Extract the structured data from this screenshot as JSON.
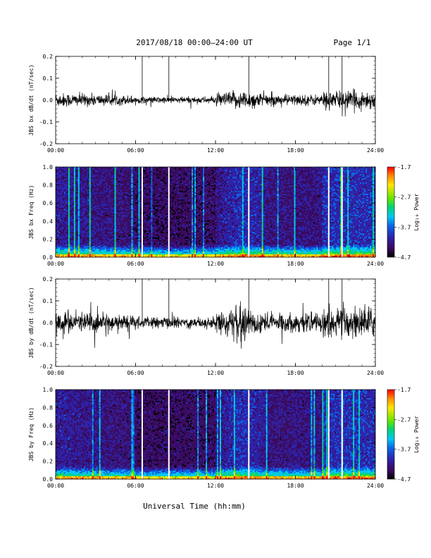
{
  "header": {
    "title": "2017/08/18  00:00–24:00 UT",
    "page": "Page 1/1"
  },
  "footer": {
    "xlabel": "Universal Time (hh:mm)"
  },
  "colors": {
    "spectrogram_palette": [
      "#000000",
      "#3a0a5e",
      "#2e22a8",
      "#0a66e8",
      "#00c8f0",
      "#00d27a",
      "#64e600",
      "#ffe600",
      "#ff8c00",
      "#ff0000"
    ],
    "trace": "#000000",
    "gap": "#ffffff"
  },
  "chart_data": [
    {
      "type": "line",
      "id": "bx-ts",
      "ylabel": "JBS bx dB/dt (nT/sec)",
      "xticks": [
        "00:00",
        "06:00",
        "12:00",
        "18:00",
        "24:00"
      ],
      "xlim": [
        0,
        24
      ],
      "ylim": [
        -0.2,
        0.2
      ],
      "yticks": [
        "0.2",
        "0.1",
        "0.0",
        "-0.1",
        "-0.2"
      ],
      "description_values": {
        "baseline": 0.0,
        "typical_amplitude_nT_per_s": 0.03,
        "spikes_hours": [
          6.5,
          8.5,
          14.5,
          20.5,
          21.5
        ]
      }
    },
    {
      "type": "heatmap",
      "id": "bx-spec",
      "ylabel": "JBS bx Freq (Hz)",
      "xticks": [
        "00:00",
        "06:00",
        "12:00",
        "18:00",
        "24:00"
      ],
      "xlim": [
        0,
        24
      ],
      "ylim": [
        0.0,
        1.0
      ],
      "yticks": [
        "1.0",
        "0.8",
        "0.6",
        "0.4",
        "0.2",
        "0.0"
      ],
      "colorbar": {
        "label": "Log₁₀ Power",
        "ticks": [
          "-1.7",
          "-2.7",
          "-3.7",
          "-4.7"
        ],
        "range": [
          -4.7,
          -1.7
        ]
      },
      "data_gaps_hours": [
        6.5,
        8.5,
        14.5,
        20.5,
        21.5
      ]
    },
    {
      "type": "line",
      "id": "by-ts",
      "ylabel": "JBS by dB/dt (nT/sec)",
      "xticks": [
        "00:00",
        "06:00",
        "12:00",
        "18:00",
        "24:00"
      ],
      "xlim": [
        0,
        24
      ],
      "ylim": [
        -0.2,
        0.2
      ],
      "yticks": [
        "0.2",
        "0.1",
        "0.0",
        "-0.1",
        "-0.2"
      ],
      "description_values": {
        "baseline": 0.0,
        "typical_amplitude_nT_per_s": 0.05,
        "spikes_hours": [
          6.5,
          8.5,
          14.5,
          20.5,
          21.5
        ]
      }
    },
    {
      "type": "heatmap",
      "id": "by-spec",
      "ylabel": "JBS by Freq (Hz)",
      "xticks": [
        "00:00",
        "06:00",
        "12:00",
        "18:00",
        "24:00"
      ],
      "xlim": [
        0,
        24
      ],
      "ylim": [
        0.0,
        1.0
      ],
      "yticks": [
        "1.0",
        "0.8",
        "0.6",
        "0.4",
        "0.2",
        "0.0"
      ],
      "colorbar": {
        "label": "Log₁₀ Power",
        "ticks": [
          "-1.7",
          "-2.7",
          "-3.7",
          "-4.7"
        ],
        "range": [
          -4.7,
          -1.7
        ]
      },
      "data_gaps_hours": [
        6.5,
        8.5,
        14.5,
        20.5,
        21.5
      ]
    }
  ]
}
